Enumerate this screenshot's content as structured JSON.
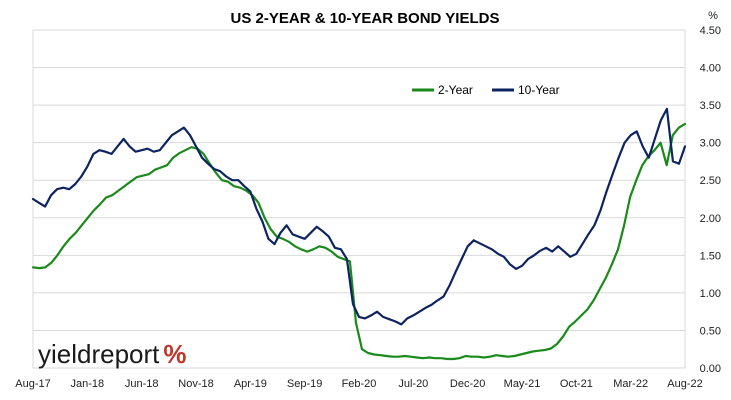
{
  "chart_data": {
    "type": "line",
    "title": "US 2-YEAR & 10-YEAR BOND YIELDS",
    "y_unit": "%",
    "ylim": [
      0,
      4.5
    ],
    "y_ticks": [
      "0.00",
      "0.50",
      "1.00",
      "1.50",
      "2.00",
      "2.50",
      "3.00",
      "3.50",
      "4.00",
      "4.50"
    ],
    "y_axis_side": "right",
    "x_ticks": [
      "Aug-17",
      "Jan-18",
      "Jun-18",
      "Nov-18",
      "Apr-19",
      "Sep-19",
      "Feb-20",
      "Jul-20",
      "Dec-20",
      "May-21",
      "Oct-21",
      "Mar-22",
      "Aug-22"
    ],
    "grid": "horizontal",
    "legend_position": "top-center",
    "series": [
      {
        "name": "2-Year",
        "color": "#1a8a1a",
        "values": [
          1.34,
          1.33,
          1.34,
          1.4,
          1.5,
          1.62,
          1.72,
          1.8,
          1.9,
          2.0,
          2.1,
          2.18,
          2.27,
          2.3,
          2.36,
          2.42,
          2.48,
          2.54,
          2.56,
          2.58,
          2.64,
          2.67,
          2.7,
          2.8,
          2.86,
          2.9,
          2.94,
          2.92,
          2.85,
          2.72,
          2.6,
          2.5,
          2.48,
          2.42,
          2.4,
          2.36,
          2.3,
          2.2,
          2.0,
          1.85,
          1.75,
          1.72,
          1.68,
          1.62,
          1.58,
          1.55,
          1.58,
          1.62,
          1.6,
          1.55,
          1.48,
          1.45,
          1.42,
          0.6,
          0.25,
          0.2,
          0.18,
          0.17,
          0.16,
          0.15,
          0.15,
          0.16,
          0.15,
          0.14,
          0.13,
          0.14,
          0.13,
          0.13,
          0.12,
          0.12,
          0.13,
          0.16,
          0.15,
          0.15,
          0.14,
          0.15,
          0.17,
          0.16,
          0.15,
          0.16,
          0.18,
          0.2,
          0.22,
          0.23,
          0.24,
          0.26,
          0.32,
          0.42,
          0.55,
          0.62,
          0.7,
          0.78,
          0.9,
          1.05,
          1.2,
          1.38,
          1.58,
          1.9,
          2.28,
          2.5,
          2.7,
          2.82,
          2.9,
          3.0,
          2.7,
          3.1,
          3.2,
          3.25
        ]
      },
      {
        "name": "10-Year",
        "color": "#0d2461",
        "values": [
          2.25,
          2.2,
          2.15,
          2.3,
          2.38,
          2.4,
          2.38,
          2.45,
          2.55,
          2.68,
          2.85,
          2.9,
          2.88,
          2.85,
          2.95,
          3.05,
          2.95,
          2.88,
          2.9,
          2.92,
          2.88,
          2.9,
          3.0,
          3.1,
          3.15,
          3.2,
          3.1,
          2.95,
          2.8,
          2.72,
          2.65,
          2.62,
          2.55,
          2.5,
          2.5,
          2.42,
          2.35,
          2.12,
          1.95,
          1.72,
          1.65,
          1.8,
          1.9,
          1.78,
          1.75,
          1.72,
          1.8,
          1.88,
          1.82,
          1.75,
          1.6,
          1.58,
          1.45,
          0.85,
          0.68,
          0.66,
          0.7,
          0.75,
          0.68,
          0.65,
          0.62,
          0.58,
          0.66,
          0.7,
          0.75,
          0.8,
          0.84,
          0.9,
          0.95,
          1.1,
          1.28,
          1.45,
          1.62,
          1.7,
          1.66,
          1.62,
          1.58,
          1.52,
          1.48,
          1.38,
          1.32,
          1.36,
          1.45,
          1.5,
          1.56,
          1.6,
          1.55,
          1.62,
          1.55,
          1.48,
          1.52,
          1.65,
          1.78,
          1.9,
          2.1,
          2.35,
          2.58,
          2.8,
          3.0,
          3.1,
          3.15,
          2.95,
          2.8,
          3.05,
          3.3,
          3.45,
          2.75,
          2.72,
          2.95
        ]
      }
    ]
  },
  "branding": {
    "logo_word": "yieldreport",
    "logo_mark": "%"
  }
}
